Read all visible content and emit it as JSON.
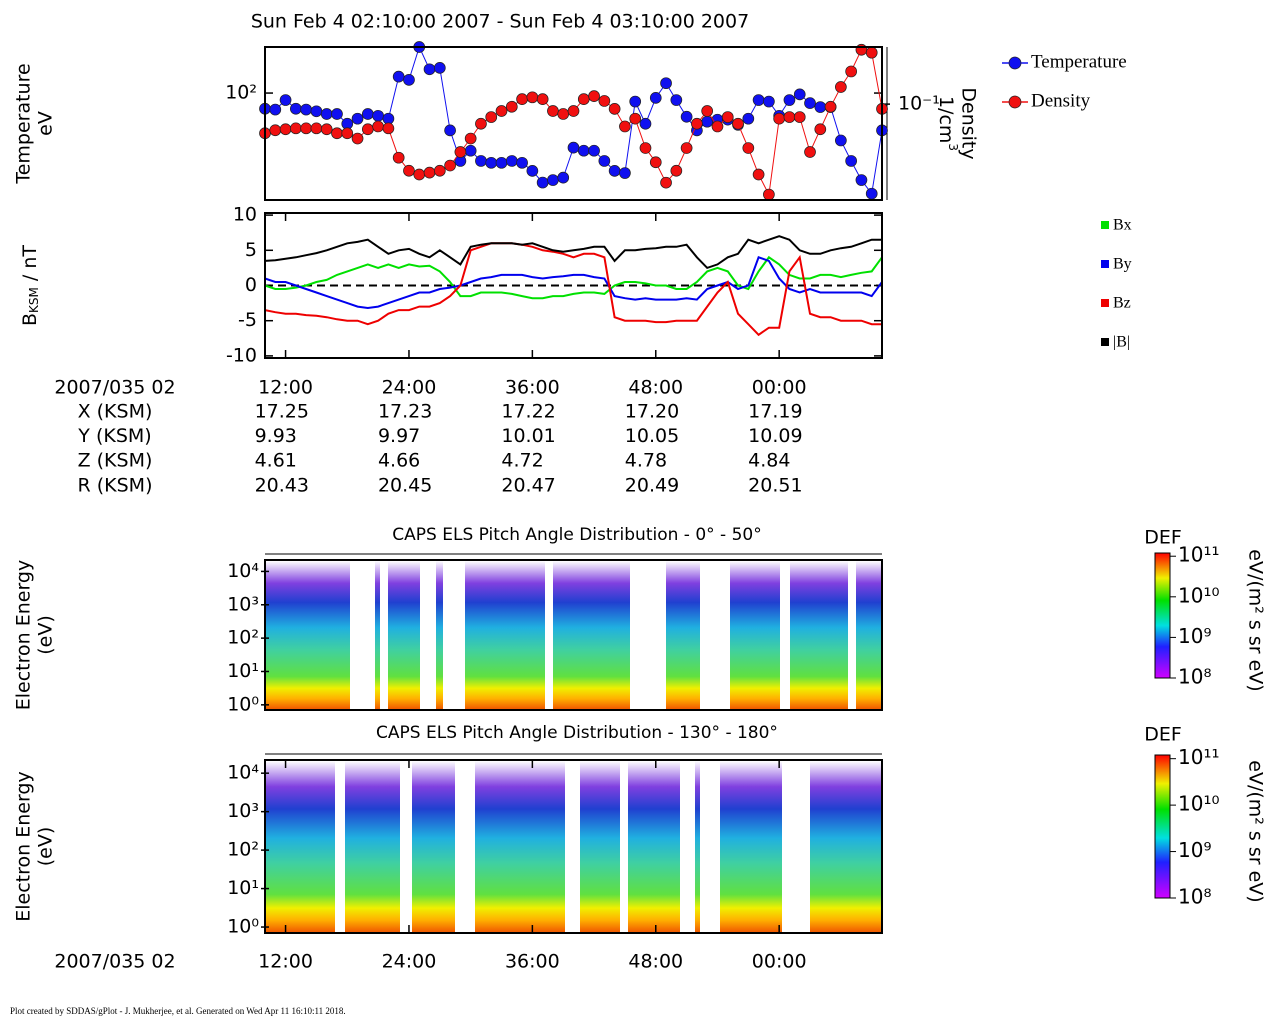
{
  "title": "Sun Feb 4 02:10:00 2007 - Sun Feb 4 03:10:00 2007",
  "footer": "Plot created by SDDAS/gPlot - J. Mukherjee, et al.  Generated on Wed Apr 11 16:10:11 2018.",
  "ephemeris": {
    "time_label": "2007/035 02",
    "rows": [
      {
        "label": "X (KSM)",
        "values": [
          "17.25",
          "17.23",
          "17.22",
          "17.20",
          "17.19"
        ]
      },
      {
        "label": "Y (KSM)",
        "values": [
          "9.93",
          "9.97",
          "10.01",
          "10.05",
          "10.09"
        ]
      },
      {
        "label": "Z (KSM)",
        "values": [
          "4.61",
          "4.66",
          "4.72",
          "4.78",
          "4.84"
        ]
      },
      {
        "label": "R (KSM)",
        "values": [
          "20.43",
          "20.45",
          "20.47",
          "20.49",
          "20.51"
        ]
      }
    ]
  },
  "chart_data": [
    {
      "type": "line",
      "markers": true,
      "yscale": "log",
      "y2scale": "log",
      "ylabel": [
        "Temperature",
        "eV"
      ],
      "y2label": [
        "Density",
        "1/cm",
        "3"
      ],
      "xlim": [
        10,
        70
      ],
      "ylim": [
        20,
        200
      ],
      "yticks": [
        {
          "value": 100,
          "label": "10²"
        }
      ],
      "y2lim": [
        0.023,
        0.24
      ],
      "y2ticks": [
        {
          "value": 0.1,
          "label": "10⁻¹"
        }
      ],
      "x": [
        10,
        11,
        12,
        13,
        14,
        15,
        16,
        17,
        18,
        19,
        20,
        21,
        22,
        23,
        24,
        25,
        26,
        27,
        28,
        29,
        30,
        31,
        32,
        33,
        34,
        35,
        36,
        37,
        38,
        39,
        40,
        41,
        42,
        43,
        44,
        45,
        46,
        47,
        48,
        49,
        50,
        51,
        52,
        53,
        54,
        55,
        56,
        57,
        58,
        59,
        60,
        61,
        62,
        63,
        64,
        65,
        66,
        67,
        68,
        69,
        70
      ],
      "series": [
        {
          "name": "Temperature",
          "color": "#1010f0",
          "values": [
            79,
            78,
            90,
            79,
            78,
            76,
            73,
            73,
            63,
            68,
            73,
            71,
            68,
            128,
            122,
            200,
            143,
            146,
            57,
            36,
            42,
            36,
            35,
            35,
            36,
            35,
            31,
            26,
            27,
            28,
            44,
            42,
            42,
            36,
            31,
            30,
            88,
            63,
            93,
            116,
            90,
            70,
            57,
            65,
            67,
            67,
            62,
            68,
            90,
            88,
            71,
            90,
            98,
            86,
            81,
            81,
            49,
            36,
            27,
            22,
            57
          ]
        },
        {
          "name": "Density",
          "color": "#f01010",
          "axis": "y2",
          "values": [
            0.064,
            0.067,
            0.068,
            0.069,
            0.069,
            0.069,
            0.068,
            0.064,
            0.064,
            0.059,
            0.068,
            0.071,
            0.069,
            0.044,
            0.036,
            0.034,
            0.035,
            0.036,
            0.039,
            0.048,
            0.059,
            0.074,
            0.082,
            0.09,
            0.096,
            0.108,
            0.111,
            0.108,
            0.09,
            0.086,
            0.09,
            0.108,
            0.113,
            0.105,
            0.093,
            0.071,
            0.08,
            0.051,
            0.041,
            0.03,
            0.036,
            0.051,
            0.074,
            0.09,
            0.071,
            0.082,
            0.074,
            0.051,
            0.034,
            0.025,
            0.08,
            0.082,
            0.082,
            0.048,
            0.068,
            0.096,
            0.13,
            0.165,
            0.23,
            0.22,
            0.093
          ]
        }
      ]
    },
    {
      "type": "line",
      "markers": false,
      "ylabel": [
        "B",
        "KSM",
        " / nT"
      ],
      "xlim": [
        10,
        70
      ],
      "xticks": [
        {
          "value": 12,
          "label": "12:00"
        },
        {
          "value": 24,
          "label": "24:00"
        },
        {
          "value": 36,
          "label": "36:00"
        },
        {
          "value": 48,
          "label": "48:00"
        },
        {
          "value": 60,
          "label": "00:00"
        }
      ],
      "ylim": [
        -10.3,
        10.3
      ],
      "yticks": [
        -10,
        -5,
        0,
        5,
        10
      ],
      "x": [
        10,
        11,
        12,
        13,
        14,
        15,
        16,
        17,
        18,
        19,
        20,
        21,
        22,
        23,
        24,
        25,
        26,
        27,
        28,
        29,
        30,
        31,
        32,
        33,
        34,
        35,
        36,
        37,
        38,
        39,
        40,
        41,
        42,
        43,
        44,
        45,
        46,
        47,
        48,
        49,
        50,
        51,
        52,
        53,
        54,
        55,
        56,
        57,
        58,
        59,
        60,
        61,
        62,
        63,
        64,
        65,
        66,
        67,
        68,
        69,
        70
      ],
      "series": [
        {
          "name": "Bx",
          "color": "#00e000",
          "values": [
            0,
            -0.5,
            -0.5,
            -0.3,
            0,
            0.5,
            0.8,
            1.5,
            2,
            2.5,
            3,
            2.5,
            3,
            2.5,
            3,
            2.7,
            2.8,
            2,
            0.5,
            -1.5,
            -1.5,
            -1,
            -1,
            -1,
            -1.2,
            -1.5,
            -1.8,
            -1.8,
            -1.5,
            -1.5,
            -1.2,
            -1,
            -1,
            -1.2,
            0,
            0.5,
            0.5,
            0.3,
            0,
            0,
            -0.5,
            -0.5,
            0.5,
            2,
            2.5,
            2,
            0,
            -0.5,
            2,
            4,
            3,
            1.5,
            1,
            1,
            1.5,
            1.5,
            1.2,
            1.5,
            1.8,
            2,
            4
          ]
        },
        {
          "name": "By",
          "color": "#0000ee",
          "values": [
            1,
            0.5,
            0.5,
            0,
            -0.5,
            -1,
            -1.5,
            -2,
            -2.5,
            -3,
            -3.2,
            -3,
            -2.5,
            -2,
            -1.5,
            -1,
            -1,
            -0.5,
            -0.3,
            0,
            0.5,
            1,
            1.2,
            1.5,
            1.5,
            1.5,
            1.2,
            1,
            1.2,
            1.3,
            1.5,
            1.5,
            1.2,
            1,
            -1.5,
            -1.8,
            -2,
            -1.8,
            -2,
            -2,
            -2,
            -1.8,
            -2,
            -0.5,
            0,
            0.5,
            -0.5,
            0,
            4,
            3.5,
            1,
            -0.5,
            -1,
            -0.5,
            -1,
            -1,
            -1,
            -1,
            -1,
            -1.5,
            0.5
          ]
        },
        {
          "name": "Bz",
          "color": "#ee0000",
          "values": [
            -3.5,
            -3.8,
            -4,
            -4,
            -4.2,
            -4.3,
            -4.5,
            -4.8,
            -5,
            -5,
            -5.5,
            -5,
            -4,
            -3.5,
            -3.5,
            -3,
            -3,
            -2.5,
            -1.5,
            0,
            5,
            5.5,
            6,
            6,
            6,
            5.8,
            5.5,
            5,
            4.8,
            4.5,
            4,
            4.5,
            4.5,
            4,
            -4.5,
            -5,
            -5,
            -5,
            -5.2,
            -5.2,
            -5,
            -5,
            -5,
            -3,
            -1,
            0.5,
            -4,
            -5.5,
            -7,
            -6,
            -6,
            2,
            4,
            -4,
            -4.5,
            -4.5,
            -5,
            -5,
            -5,
            -5.5,
            -5.5
          ]
        },
        {
          "name": "|B|",
          "color": "#000000",
          "values": [
            3.5,
            3.6,
            3.8,
            4,
            4.3,
            4.6,
            5,
            5.5,
            6,
            6.2,
            6.5,
            5.5,
            4.5,
            5,
            5.2,
            4.5,
            4,
            5,
            4,
            3,
            5.5,
            5.8,
            6,
            6,
            6,
            5.8,
            6,
            5.5,
            5,
            4.8,
            5,
            5.2,
            5.5,
            5.5,
            3.5,
            5,
            5,
            5.2,
            5.3,
            5.5,
            5.5,
            5.8,
            4,
            2.5,
            3,
            4,
            4.5,
            6.5,
            6,
            6.5,
            7,
            6.5,
            5,
            4.5,
            4.5,
            5,
            5.3,
            5.5,
            6,
            6.5,
            6.5
          ]
        }
      ]
    },
    {
      "type": "heatmap",
      "title": "CAPS ELS Pitch Angle Distribution - 0° - 50°",
      "yscale": "log",
      "ylabel": [
        "Electron Energy",
        "(eV)"
      ],
      "xlim": [
        10,
        70
      ],
      "ylim": [
        0.7,
        22000
      ],
      "yticks": [
        {
          "value": 1,
          "label": "10⁰"
        },
        {
          "value": 10,
          "label": "10¹"
        },
        {
          "value": 100,
          "label": "10²"
        },
        {
          "value": 1000,
          "label": "10³"
        },
        {
          "value": 10000,
          "label": "10⁴"
        }
      ],
      "colorbar": {
        "title": "DEF",
        "label": "eV/(m² s sr eV)",
        "lim": [
          100000000.0,
          120000000000.0
        ],
        "ticks": [
          {
            "value": 100000000.0,
            "label": "10⁸"
          },
          {
            "value": 1000000000.0,
            "label": "10⁹"
          },
          {
            "value": 10000000000.0,
            "label": "10¹⁰"
          },
          {
            "value": 100000000000.0,
            "label": "10¹¹"
          }
        ]
      }
    },
    {
      "type": "heatmap",
      "title": "CAPS ELS Pitch Angle Distribution - 130° - 180°",
      "yscale": "log",
      "ylabel": [
        "Electron Energy",
        "(eV)"
      ],
      "xlabel": "2007/035 02",
      "xlim": [
        10,
        70
      ],
      "ylim": [
        0.7,
        22000
      ],
      "xticks": [
        {
          "value": 12,
          "label": "12:00"
        },
        {
          "value": 24,
          "label": "24:00"
        },
        {
          "value": 36,
          "label": "36:00"
        },
        {
          "value": 48,
          "label": "48:00"
        },
        {
          "value": 60,
          "label": "00:00"
        }
      ],
      "yticks": [
        {
          "value": 1,
          "label": "10⁰"
        },
        {
          "value": 10,
          "label": "10¹"
        },
        {
          "value": 100,
          "label": "10²"
        },
        {
          "value": 1000,
          "label": "10³"
        },
        {
          "value": 10000,
          "label": "10⁴"
        }
      ],
      "colorbar": {
        "title": "DEF",
        "label": "eV/(m² s sr eV)",
        "lim": [
          100000000.0,
          120000000000.0
        ],
        "ticks": [
          {
            "value": 100000000.0,
            "label": "10⁸"
          },
          {
            "value": 1000000000.0,
            "label": "10⁹"
          },
          {
            "value": 10000000000.0,
            "label": "10¹⁰"
          },
          {
            "value": 100000000000.0,
            "label": "10¹¹"
          }
        ]
      }
    }
  ]
}
